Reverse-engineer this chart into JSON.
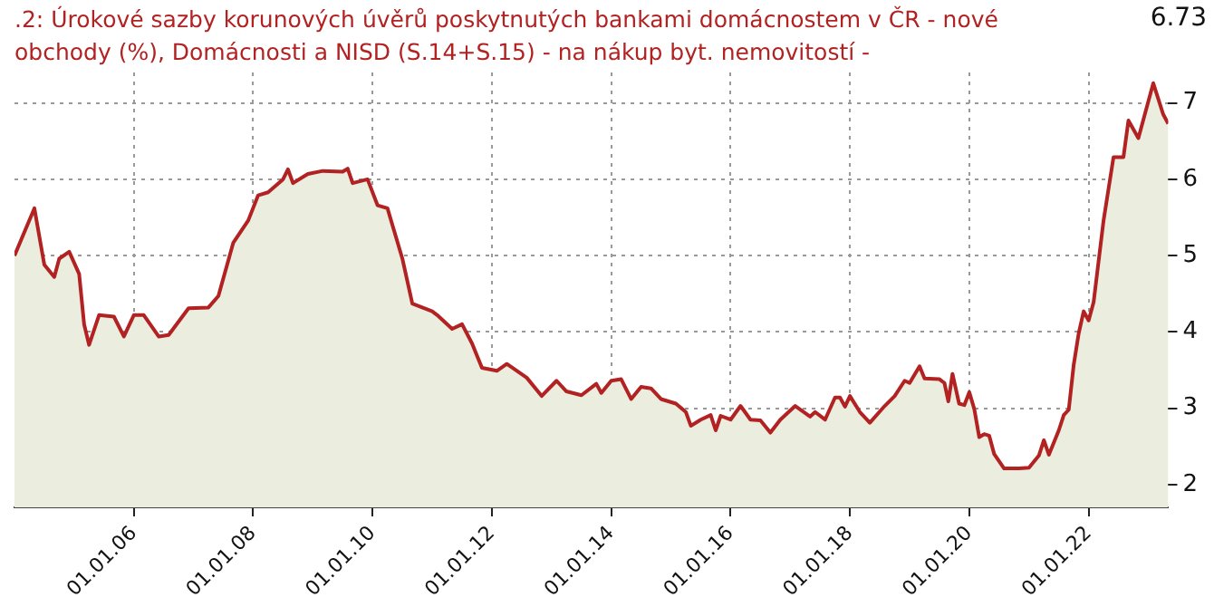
{
  "chart_data": {
    "type": "area",
    "title": ".2: Úrokové sazby korunových úvěrů poskytnutých bankami domácnostem v ČR - nové obchody (%), Domácnosti a NISD (S.14+S.15) - na nákup byt. nemovitostí -",
    "x": [
      "2004-01",
      "2004-05",
      "2004-07",
      "2004-09",
      "2004-10",
      "2004-12",
      "2005-02",
      "2005-03",
      "2005-04",
      "2005-06",
      "2005-09",
      "2005-11",
      "2006-01",
      "2006-03",
      "2006-06",
      "2006-08",
      "2006-12",
      "2007-04",
      "2007-06",
      "2007-09",
      "2007-12",
      "2008-02",
      "2008-04",
      "2008-07",
      "2008-08",
      "2008-09",
      "2008-12",
      "2009-03",
      "2009-07",
      "2009-08",
      "2009-09",
      "2009-12",
      "2010-02",
      "2010-04",
      "2010-07",
      "2010-09",
      "2011-01",
      "2011-02",
      "2011-05",
      "2011-07",
      "2011-09",
      "2011-11",
      "2012-02",
      "2012-04",
      "2012-08",
      "2012-11",
      "2013-02",
      "2013-04",
      "2013-07",
      "2013-10",
      "2013-11",
      "2014-01",
      "2014-03",
      "2014-05",
      "2014-07",
      "2014-09",
      "2014-11",
      "2015-02",
      "2015-04",
      "2015-05",
      "2015-07",
      "2015-09",
      "2015-10",
      "2015-11",
      "2016-01",
      "2016-03",
      "2016-05",
      "2016-07",
      "2016-09",
      "2016-11",
      "2017-02",
      "2017-05",
      "2017-06",
      "2017-08",
      "2017-10",
      "2017-11",
      "2017-12",
      "2018-01",
      "2018-03",
      "2018-05",
      "2018-08",
      "2018-10",
      "2018-12",
      "2019-01",
      "2019-03",
      "2019-04",
      "2019-07",
      "2019-08-01",
      "2019-08-25",
      "2019-09-20",
      "2019-10-30",
      "2019-12",
      "2020-01",
      "2020-02",
      "2020-03",
      "2020-04",
      "2020-05",
      "2020-06",
      "2020-08",
      "2020-11",
      "2021-01",
      "2021-03",
      "2021-04",
      "2021-05",
      "2021-07",
      "2021-08",
      "2021-09",
      "2021-10",
      "2021-11",
      "2021-12",
      "2022-01",
      "2022-02",
      "2022-04",
      "2022-06",
      "2022-08",
      "2022-09",
      "2022-11",
      "2023-02",
      "2023-04",
      "2023-05"
    ],
    "series": [
      {
        "color": "#b22222",
        "values": [
          5.0,
          5.62,
          4.88,
          4.72,
          4.96,
          5.05,
          4.76,
          4.1,
          3.83,
          4.22,
          4.2,
          3.94,
          4.22,
          4.22,
          3.94,
          3.96,
          4.31,
          4.32,
          4.47,
          5.17,
          5.46,
          5.79,
          5.83,
          6.0,
          6.13,
          5.95,
          6.07,
          6.11,
          6.1,
          6.14,
          5.95,
          6.0,
          5.66,
          5.62,
          4.96,
          4.37,
          4.27,
          4.22,
          4.04,
          4.1,
          3.85,
          3.53,
          3.49,
          3.58,
          3.4,
          3.16,
          3.36,
          3.22,
          3.17,
          3.32,
          3.2,
          3.36,
          3.38,
          3.12,
          3.28,
          3.26,
          3.12,
          3.06,
          2.95,
          2.77,
          2.85,
          2.91,
          2.71,
          2.9,
          2.85,
          3.03,
          2.85,
          2.84,
          2.68,
          2.85,
          3.03,
          2.89,
          2.95,
          2.85,
          3.14,
          3.14,
          3.02,
          3.16,
          2.95,
          2.81,
          3.03,
          3.16,
          3.36,
          3.33,
          3.55,
          3.39,
          3.38,
          3.33,
          3.09,
          3.45,
          3.06,
          3.04,
          3.21,
          2.99,
          2.62,
          2.66,
          2.64,
          2.4,
          2.21,
          2.21,
          2.22,
          2.38,
          2.58,
          2.39,
          2.71,
          2.91,
          2.98,
          3.57,
          3.98,
          4.27,
          4.15,
          4.39,
          5.46,
          6.29,
          6.29,
          6.77,
          6.54,
          7.26,
          6.85,
          6.73
        ]
      }
    ],
    "xlim": [
      "2004-01",
      "2023-05"
    ],
    "xticks": [
      {
        "value": "2006-01-01",
        "label": "01.01.06"
      },
      {
        "value": "2008-01-01",
        "label": "01.01.08"
      },
      {
        "value": "2010-01-01",
        "label": "01.01.10"
      },
      {
        "value": "2012-01-01",
        "label": "01.01.12"
      },
      {
        "value": "2014-01-01",
        "label": "01.01.14"
      },
      {
        "value": "2016-01-01",
        "label": "01.01.16"
      },
      {
        "value": "2018-01-01",
        "label": "01.01.18"
      },
      {
        "value": "2020-01-01",
        "label": "01.01.20"
      },
      {
        "value": "2022-01-01",
        "label": "01.01.22"
      }
    ],
    "ylim": [
      1.7,
      7.4
    ],
    "yticks": [
      2,
      3,
      4,
      5,
      6,
      7
    ],
    "annotations": [
      "6.73"
    ],
    "grid": true,
    "legend": false,
    "marker": "none",
    "line_style": "solid"
  }
}
